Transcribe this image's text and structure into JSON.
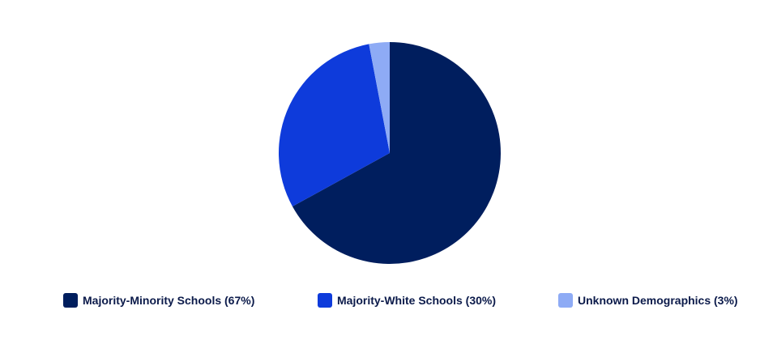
{
  "chart_data": {
    "type": "pie",
    "title": "",
    "series": [
      {
        "name": "Majority-Minority Schools (67%)",
        "value": 67,
        "color": "#001E5E"
      },
      {
        "name": "Majority-White Schools (30%)",
        "value": 30,
        "color": "#0E3BDB"
      },
      {
        "name": "Unknown Demographics (3%)",
        "value": 3,
        "color": "#8EABF5"
      }
    ],
    "start_angle_deg": 0,
    "direction": "clockwise",
    "legend_position": "bottom"
  }
}
